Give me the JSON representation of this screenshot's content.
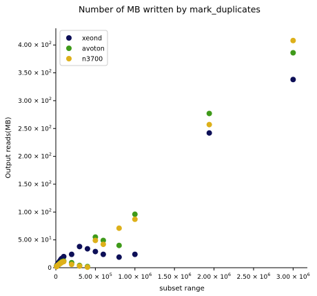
{
  "chart_data": {
    "type": "scatter",
    "title": "Number of MB written by mark_duplicates",
    "xlabel": "subset range",
    "ylabel": "Output reads(MB)",
    "xlim": [
      0,
      3180000
    ],
    "ylim": [
      0,
      430
    ],
    "x_ticks": [
      {
        "value": 0,
        "mantissa": "0",
        "exp": ""
      },
      {
        "value": 500000,
        "mantissa": "5.00",
        "exp": "5"
      },
      {
        "value": 1000000,
        "mantissa": "1.00",
        "exp": "6"
      },
      {
        "value": 1500000,
        "mantissa": "1.50",
        "exp": "6"
      },
      {
        "value": 2000000,
        "mantissa": "2.00",
        "exp": "6"
      },
      {
        "value": 2500000,
        "mantissa": "2.50",
        "exp": "6"
      },
      {
        "value": 3000000,
        "mantissa": "3.00",
        "exp": "6"
      }
    ],
    "y_ticks": [
      {
        "value": 0,
        "mantissa": "0",
        "exp": ""
      },
      {
        "value": 50,
        "mantissa": "5.00",
        "exp": "1"
      },
      {
        "value": 100,
        "mantissa": "1.00",
        "exp": "2"
      },
      {
        "value": 150,
        "mantissa": "1.50",
        "exp": "2"
      },
      {
        "value": 200,
        "mantissa": "2.00",
        "exp": "2"
      },
      {
        "value": 250,
        "mantissa": "2.50",
        "exp": "2"
      },
      {
        "value": 300,
        "mantissa": "3.00",
        "exp": "2"
      },
      {
        "value": 350,
        "mantissa": "3.50",
        "exp": "2"
      },
      {
        "value": 400,
        "mantissa": "4.00",
        "exp": "2"
      }
    ],
    "tick_base": "10",
    "grid": false,
    "legend_position": "top-left",
    "series": [
      {
        "name": "xeond",
        "color": "#0d0f57",
        "points": [
          [
            10000,
            3
          ],
          [
            20000,
            6
          ],
          [
            30000,
            8
          ],
          [
            40000,
            10
          ],
          [
            50000,
            12
          ],
          [
            60000,
            14
          ],
          [
            70000,
            16
          ],
          [
            80000,
            17
          ],
          [
            100000,
            20
          ],
          [
            200000,
            24
          ],
          [
            300000,
            38
          ],
          [
            400000,
            34
          ],
          [
            500000,
            29
          ],
          [
            600000,
            24
          ],
          [
            800000,
            19
          ],
          [
            1000000,
            24
          ],
          [
            1940000,
            242
          ],
          [
            3000000,
            338
          ]
        ]
      },
      {
        "name": "avoton",
        "color": "#3f9a1a",
        "points": [
          [
            10000,
            3
          ],
          [
            20000,
            4
          ],
          [
            30000,
            5
          ],
          [
            40000,
            6
          ],
          [
            50000,
            8
          ],
          [
            60000,
            9
          ],
          [
            70000,
            10
          ],
          [
            80000,
            11
          ],
          [
            100000,
            12
          ],
          [
            200000,
            9
          ],
          [
            300000,
            4
          ],
          [
            400000,
            2
          ],
          [
            500000,
            55
          ],
          [
            600000,
            49
          ],
          [
            800000,
            40
          ],
          [
            1000000,
            96
          ],
          [
            1940000,
            277
          ],
          [
            3000000,
            386
          ]
        ]
      },
      {
        "name": "n3700",
        "color": "#ddb01a",
        "points": [
          [
            10000,
            2
          ],
          [
            20000,
            4
          ],
          [
            30000,
            5
          ],
          [
            40000,
            6
          ],
          [
            50000,
            7
          ],
          [
            60000,
            8
          ],
          [
            70000,
            9
          ],
          [
            80000,
            10
          ],
          [
            100000,
            11
          ],
          [
            200000,
            6
          ],
          [
            300000,
            3
          ],
          [
            400000,
            1
          ],
          [
            500000,
            49
          ],
          [
            600000,
            42
          ],
          [
            800000,
            71
          ],
          [
            1000000,
            87
          ],
          [
            1940000,
            257
          ],
          [
            3000000,
            408
          ]
        ]
      }
    ]
  }
}
